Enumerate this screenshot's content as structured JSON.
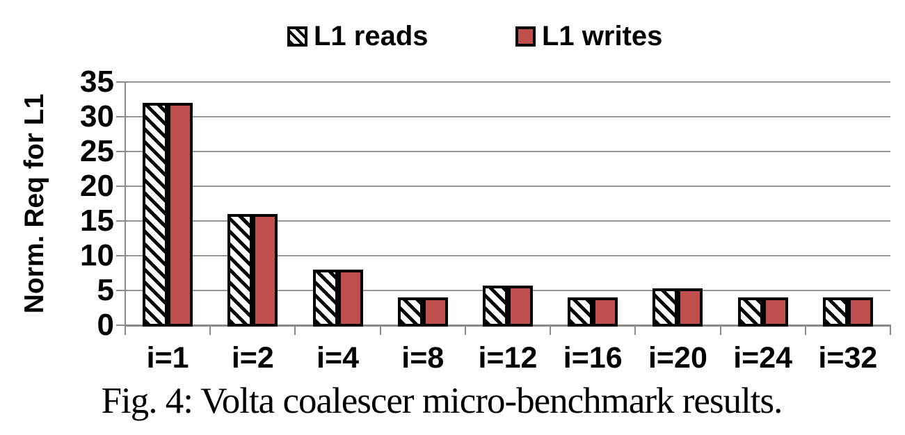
{
  "figure": {
    "caption": "Fig. 4: Volta coalescer micro-benchmark results."
  },
  "chart_data": {
    "type": "bar",
    "title": "",
    "categories": [
      "i=1",
      "i=2",
      "i=4",
      "i=8",
      "i=12",
      "i=16",
      "i=20",
      "i=24",
      "i=32"
    ],
    "series": [
      {
        "name": "L1 reads",
        "style": "hatched",
        "values": [
          32,
          16,
          8,
          4,
          5.7,
          4,
          5.3,
          4,
          4
        ]
      },
      {
        "name": "L1 writes",
        "style": "solid",
        "values": [
          32,
          16,
          8,
          4,
          5.7,
          4,
          5.3,
          4,
          4
        ]
      }
    ],
    "xlabel": "",
    "ylabel": "Norm. Req for L1",
    "ylim": [
      0,
      35
    ],
    "yticks": [
      0,
      5,
      10,
      15,
      20,
      25,
      30,
      35
    ],
    "grid": "horizontal",
    "legend_position": "top",
    "colors": {
      "writes_fill": "#C0504D",
      "reads_pattern": "black-diagonal-hatch-on-white",
      "bar_border": "#000000",
      "gridline": "#969696",
      "text": "#000000",
      "background": "#FFFFFF"
    }
  }
}
